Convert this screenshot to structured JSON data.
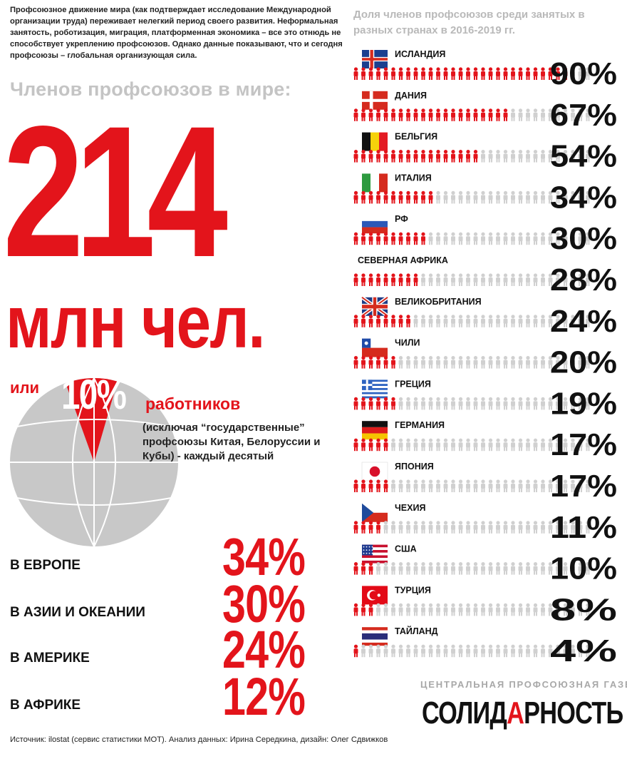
{
  "intro_text": "Профсоюзное движение мира (как подтверждает исследование Международной организации труда) переживает нелегкий период своего развития. Неформальная занятость, роботизация, миграция, платформенная экономика – все это отнюдь не способствует укреплению профсоюзов. Однако данные показывают, что и сегодня профсоюзы – глобальная организующая сила.",
  "world": {
    "label": "Членов профсоюзов в мире:",
    "number": "214",
    "unit": "млн чел.",
    "or_label": "или",
    "percent_label": "10%",
    "percent_value": 10,
    "workers_label": "работников",
    "note": "(исключая “государственные” профсоюзы Китая, Белоруссии и Кубы) - каждый десятый"
  },
  "regions": [
    {
      "label": "В ЕВРОПЕ",
      "value": "34%"
    },
    {
      "label": "В АЗИИ И ОКЕАНИИ",
      "value": "30%"
    },
    {
      "label": "В АМЕРИКЕ",
      "value": "24%"
    },
    {
      "label": "В АФРИКЕ",
      "value": "12%"
    }
  ],
  "source": "Источник: ilostat (сервис статистики МОТ). Анализ данных: Ирина Середкина, дизайн: Олег Сдвижков",
  "chart_data": {
    "type": "bar",
    "title": "Доля членов профсоюзов среди занятых в разных странах в 2016-2019 гг.",
    "unit": "%",
    "ylim": [
      0,
      100
    ],
    "categories": [
      "ИСЛАНДИЯ",
      "ДАНИЯ",
      "БЕЛЬГИЯ",
      "ИТАЛИЯ",
      "РФ",
      "СЕВЕРНАЯ АФРИКА",
      "ВЕЛИКОБРИТАНИЯ",
      "ЧИЛИ",
      "ГРЕЦИЯ",
      "ГЕРМАНИЯ",
      "ЯПОНИЯ",
      "ЧЕХИЯ",
      "США",
      "ТУРЦИЯ",
      "ТАЙЛАНД"
    ],
    "values": [
      90,
      67,
      54,
      34,
      30,
      28,
      24,
      20,
      19,
      17,
      17,
      11,
      10,
      8,
      4
    ],
    "value_labels": [
      "90%",
      "67%",
      "54%",
      "34%",
      "30%",
      "28%",
      "24%",
      "20%",
      "19%",
      "17%",
      "17%",
      "11%",
      "10%",
      "8%",
      "4%"
    ],
    "flags": [
      "iceland-flag-icon",
      "denmark-flag-icon",
      "belgium-flag-icon",
      "italy-flag-icon",
      "russia-flag-icon",
      "",
      "uk-flag-icon",
      "chile-flag-icon",
      "greece-flag-icon",
      "germany-flag-icon",
      "japan-flag-icon",
      "czech-flag-icon",
      "usa-flag-icon",
      "turkey-flag-icon",
      "thailand-flag-icon"
    ],
    "colors": {
      "filled": "#e3141b",
      "empty": "#d0d0d0"
    }
  },
  "footer": {
    "tagline": "ЦЕНТРАЛЬНАЯ ПРОФСОЮЗНАЯ ГАЗЕТА",
    "logo_a": "СОЛИД",
    "logo_b": "А",
    "logo_c": "РНОСТЬ"
  }
}
